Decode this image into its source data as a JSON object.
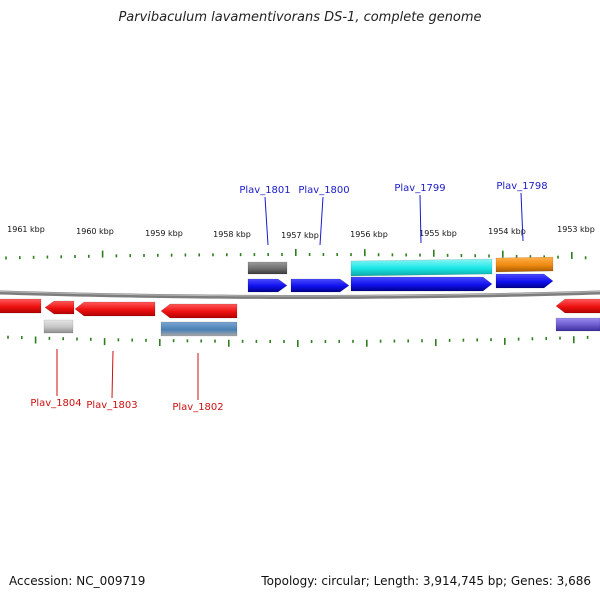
{
  "title": "Parvibaculum lavamentivorans DS-1, complete genome",
  "accession_text": "Accession: NC_009719",
  "topology_text": "Topology: circular; Length: 3,914,745 bp; Genes: 3,686",
  "ruler": {
    "unit_suffix": "kbp",
    "labels": [
      "1961 kbp",
      "1960 kbp",
      "1959 kbp",
      "1958 kbp",
      "1957 kbp",
      "1956 kbp",
      "1955 kbp",
      "1954 kbp",
      "1953 kbp"
    ]
  },
  "colors": {
    "backbone": "#7d7d7d",
    "tick": "#2e7d1e",
    "forward_label": "#1a1acc",
    "reverse_label": "#cc1111",
    "red_gene": "#ee1111",
    "blue_gene": "#1010ee",
    "cyan_feature": "#19e6e6",
    "orange_feature": "#ee8a10",
    "gray_feature": "#6e6e6e",
    "light_gray_feature": "#c4c4c4",
    "steel_feature": "#4a80b4",
    "slate_feature": "#6a5acd"
  },
  "gene_labels": {
    "forward": [
      "Plav_1801",
      "Plav_1800",
      "Plav_1799",
      "Plav_1798"
    ],
    "reverse": [
      "Plav_1804",
      "Plav_1803",
      "Plav_1802"
    ]
  }
}
